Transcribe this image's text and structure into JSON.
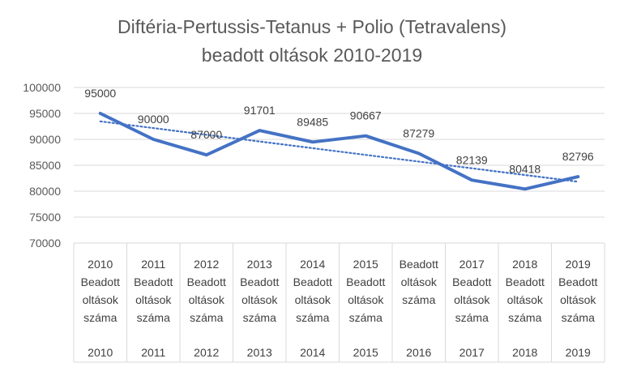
{
  "chart_data": {
    "type": "line",
    "title": [
      "Diftéria-Pertussis-Tetanus + Polio (Tetravalens)",
      "beadott oltások 2010-2019"
    ],
    "xlabel": "",
    "ylabel": "",
    "ylim": [
      70000,
      100000
    ],
    "yticks": [
      70000,
      75000,
      80000,
      85000,
      90000,
      95000,
      100000
    ],
    "ytick_labels": [
      "70000",
      "75000",
      "80000",
      "85000",
      "90000",
      "95000",
      "100000"
    ],
    "grid": true,
    "legend": "none",
    "categories": [
      {
        "top": [
          "2010",
          "Beadott",
          "oltások",
          "száma"
        ],
        "bottom": "2010"
      },
      {
        "top": [
          "2011",
          "Beadott",
          "oltások",
          "száma"
        ],
        "bottom": "2011"
      },
      {
        "top": [
          "2012",
          "Beadott",
          "oltások",
          "száma"
        ],
        "bottom": "2012"
      },
      {
        "top": [
          "2013",
          "Beadott",
          "oltások",
          "száma"
        ],
        "bottom": "2013"
      },
      {
        "top": [
          "2014",
          "Beadott",
          "oltások",
          "száma"
        ],
        "bottom": "2014"
      },
      {
        "top": [
          "2015",
          "Beadott",
          "oltások",
          "száma"
        ],
        "bottom": "2015"
      },
      {
        "top": [
          "Beadott",
          "oltások",
          "száma"
        ],
        "bottom": "2016"
      },
      {
        "top": [
          "2017",
          "Beadott",
          "oltások",
          "száma"
        ],
        "bottom": "2017"
      },
      {
        "top": [
          "2018",
          "Beadott",
          "oltások",
          "száma"
        ],
        "bottom": "2018"
      },
      {
        "top": [
          "2019",
          "Beadott",
          "oltások",
          "száma"
        ],
        "bottom": "2019"
      }
    ],
    "series": [
      {
        "values": [
          95000,
          90000,
          87000,
          91701,
          89485,
          90667,
          87279,
          82139,
          80418,
          82796
        ],
        "labels": [
          "95000",
          "90000",
          "87000",
          "91701",
          "89485",
          "90667",
          "87279",
          "82139",
          "80418",
          "82796"
        ],
        "color": "#4472c4"
      }
    ],
    "trendline": {
      "type": "linear",
      "style": "dotted",
      "color": "#4472c4"
    },
    "colors": {
      "gridline": "#d9d9d9",
      "text": "#595959"
    }
  }
}
